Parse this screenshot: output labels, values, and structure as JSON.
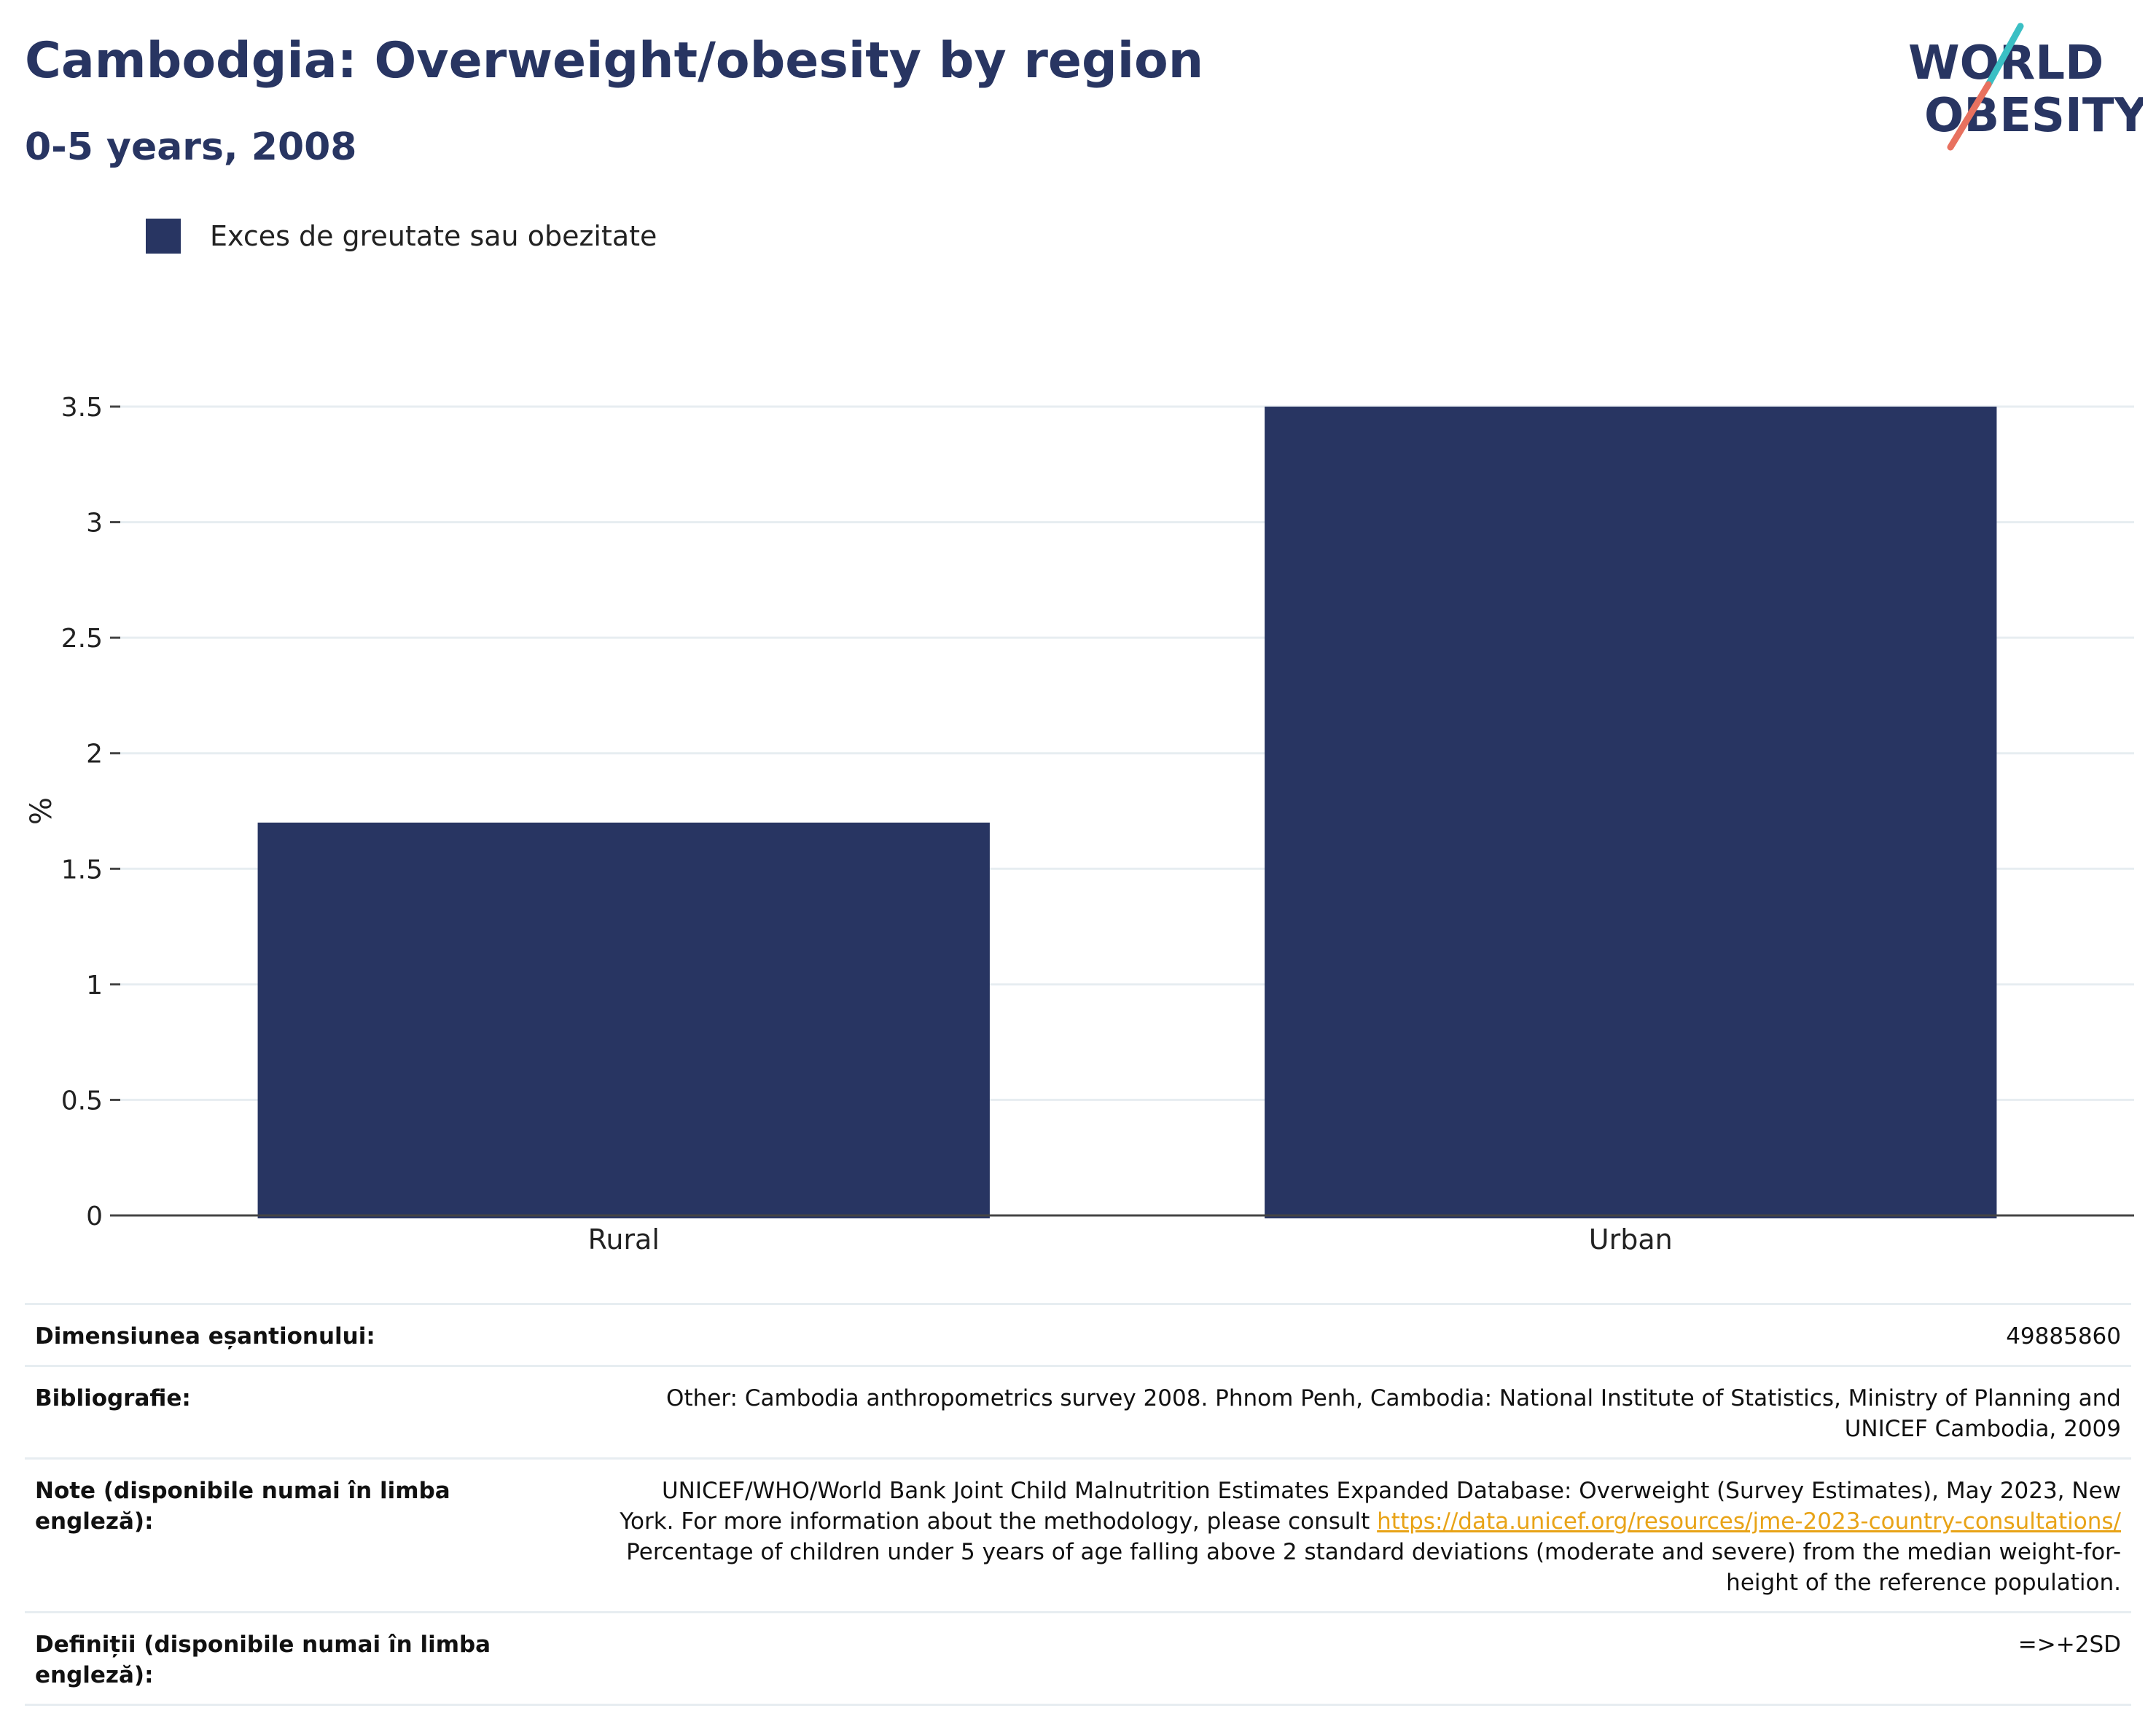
{
  "header": {
    "title": "Cambodgia: Overweight/obesity by region",
    "subtitle": "0-5 years, 2008",
    "logo_text_line1": "WORLD",
    "logo_text_line2": "OBESITY"
  },
  "legend": {
    "label": "Exces de greutate sau obezitate",
    "color": "#283562"
  },
  "chart_data": {
    "type": "bar",
    "categories": [
      "Rural",
      "Urban"
    ],
    "series": [
      {
        "name": "Exces de greutate sau obezitate",
        "values": [
          1.7,
          3.5
        ],
        "color": "#283562"
      }
    ],
    "ylabel": "%",
    "xlabel": "",
    "ylim": [
      0,
      3.5
    ],
    "yticks": [
      "0",
      "0.5",
      "1",
      "1.5",
      "2",
      "2.5",
      "3",
      "3.5"
    ],
    "grid": true,
    "legend_position": "top-left"
  },
  "meta": {
    "sample": {
      "label": "Dimensiunea eșantionului:",
      "value": "49885860"
    },
    "bibliography": {
      "label": "Bibliografie:",
      "line1": "Other: Cambodia anthropometrics survey 2008. Phnom Penh, Cambodia: National Institute of Statistics, Ministry of Planning and",
      "line2": "UNICEF Cambodia, 2009"
    },
    "notes": {
      "label": "Note (disponibile numai în limba engleză):",
      "line1": "UNICEF/WHO/World Bank Joint Child Malnutrition Estimates Expanded Database: Overweight (Survey Estimates), May 2023, New",
      "line2_prefix": "York. For more information about the methodology, please consult ",
      "link": "https://data.unicef.org/resources/jme-2023-country-consultations/",
      "line3": "Percentage of children under 5 years of age falling above 2 standard deviations (moderate and severe) from the median weight-for-",
      "line4": "height of the reference population."
    },
    "definitions": {
      "label_line1": "Definiții (disponibile numai în limba",
      "label_line2": "engleză):",
      "value": "=>+2SD"
    }
  },
  "colors": {
    "accent": "#283562",
    "grid": "#e7edf1",
    "link": "#e8a317",
    "logo_teal": "#3bbfc4",
    "logo_coral": "#e8715f"
  }
}
